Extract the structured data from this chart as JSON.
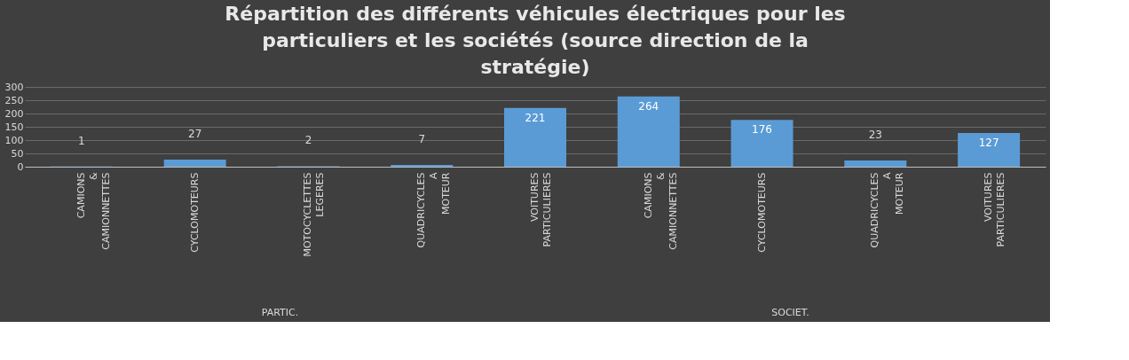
{
  "chart_data": {
    "type": "bar",
    "title": "Répartition des différents véhicules électriques pour les particuliers et les sociétés (source direction de la stratégie)",
    "categories": [
      "CAMIONS & CAMIONNETTES",
      "CYCLOMOTEURS",
      "MOTOCYCLETTES LEGERES",
      "QUADRICYCLES A MOTEUR",
      "VOITURES PARTICULIERES",
      "CAMIONS & CAMIONNETTES",
      "CYCLOMOTEURS",
      "QUADRICYCLES A MOTEUR",
      "VOITURES PARTICULIERES"
    ],
    "values": [
      1,
      27,
      2,
      7,
      221,
      264,
      176,
      23,
      127
    ],
    "color": "#5b9bd5",
    "ylim": [
      0,
      300
    ],
    "yticks": [
      0,
      50,
      100,
      150,
      200,
      250,
      300
    ],
    "grid": "y",
    "data_labels": true,
    "annotations": [
      "PARTIC.",
      "SOCIET."
    ]
  }
}
